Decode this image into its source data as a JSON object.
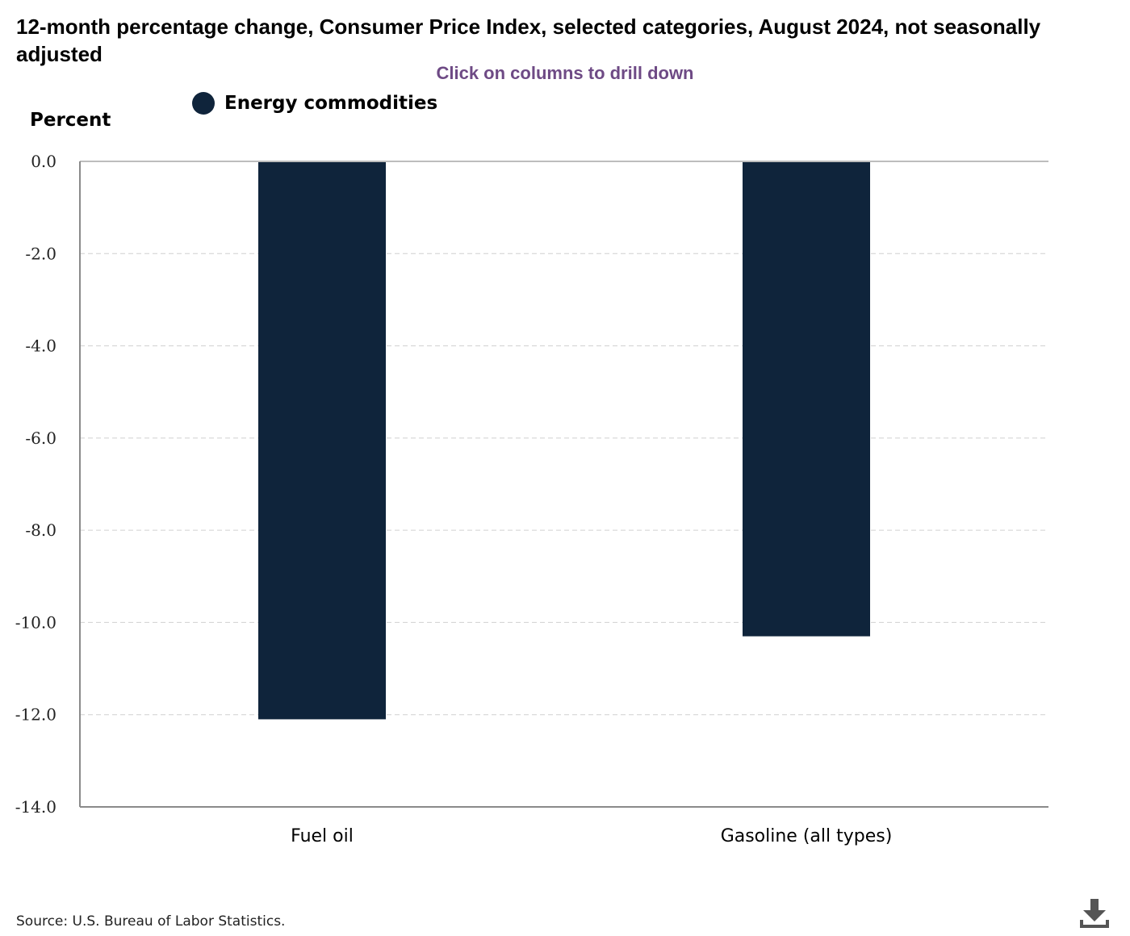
{
  "chart_data": {
    "type": "bar",
    "title": "12-month percentage change, Consumer Price Index, selected categories, August 2024, not seasonally adjusted",
    "subtitle": "Click on columns to drill down",
    "ylabel": "Percent",
    "xlabel": "",
    "categories": [
      "Fuel oil",
      "Gasoline (all types)"
    ],
    "series": [
      {
        "name": "Energy commodities",
        "values": [
          -12.1,
          -10.3
        ],
        "color": "#0f243b"
      }
    ],
    "ylim": [
      -14,
      0
    ],
    "yticks": [
      "0.0",
      "-2.0",
      "-4.0",
      "-6.0",
      "-8.0",
      "-10.0",
      "-12.0",
      "-14.0"
    ],
    "grid": true,
    "legend_position": "top-left"
  },
  "footer": {
    "source": "Source: U.S. Bureau of Labor Statistics.",
    "download_icon": "download-icon"
  }
}
